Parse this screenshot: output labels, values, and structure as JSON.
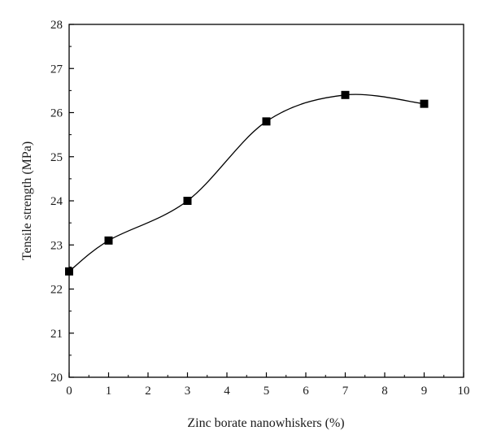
{
  "chart_data": {
    "type": "line",
    "title": "",
    "xlabel": "Zinc borate nanowhiskers (%)",
    "ylabel": "Tensile strength (MPa)",
    "xlim": [
      0,
      10
    ],
    "ylim": [
      20,
      28
    ],
    "x_ticks": [
      0,
      1,
      2,
      3,
      4,
      5,
      6,
      7,
      8,
      9,
      10
    ],
    "y_ticks": [
      20,
      21,
      22,
      23,
      24,
      25,
      26,
      27,
      28
    ],
    "grid": false,
    "legend": "none",
    "marker": "square",
    "line_style": "smooth curve",
    "line_color": "#000000",
    "x": [
      0,
      1,
      3,
      5,
      7,
      9
    ],
    "values": [
      22.4,
      23.1,
      24.0,
      25.8,
      26.4,
      26.2
    ]
  }
}
